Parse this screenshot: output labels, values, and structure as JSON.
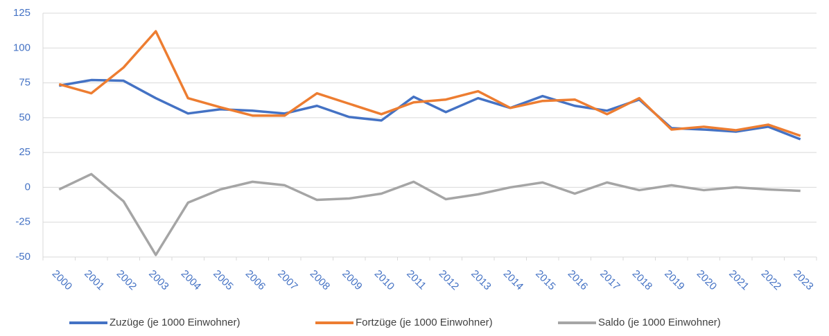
{
  "chart_data": {
    "type": "line",
    "categories": [
      "2000",
      "2001",
      "2002",
      "2003",
      "2004",
      "2005",
      "2006",
      "2007",
      "2008",
      "2009",
      "2010",
      "2011",
      "2012",
      "2013",
      "2014",
      "2015",
      "2016",
      "2017",
      "2018",
      "2019",
      "2020",
      "2021",
      "2022",
      "2023"
    ],
    "series": [
      {
        "name": "Zuzüge (je 1000 Einwohner)",
        "color": "#4472c4",
        "values": [
          73,
          77,
          76.5,
          64,
          53,
          56,
          55,
          53,
          58.5,
          50.5,
          48,
          65,
          54,
          64,
          57,
          65.5,
          58.5,
          55,
          63,
          42.5,
          41.5,
          40,
          43.5,
          34.5
        ]
      },
      {
        "name": "Fortzüge (je 1000 Einwohner)",
        "color": "#ed7d31",
        "values": [
          74,
          67.5,
          86,
          112,
          64,
          57.5,
          51.5,
          51.5,
          67.5,
          60,
          52.5,
          61,
          63,
          69,
          57,
          62,
          63,
          52.5,
          64,
          41.5,
          43.5,
          41,
          45,
          37
        ]
      },
      {
        "name": "Saldo (je 1000 Einwohner)",
        "color": "#a5a5a5",
        "values": [
          -1.5,
          9.5,
          -10,
          -48.5,
          -11,
          -1.5,
          4,
          1.5,
          -9,
          -8,
          -4.5,
          4,
          -8.5,
          -5,
          0,
          3.5,
          -4.5,
          3.5,
          -2,
          1.5,
          -2,
          0,
          -1.5,
          -2.5
        ]
      }
    ],
    "ylim": [
      -50,
      125
    ],
    "yticks": [
      -50,
      -25,
      0,
      25,
      50,
      75,
      100,
      125
    ],
    "grid": true,
    "legend": "bottom"
  }
}
